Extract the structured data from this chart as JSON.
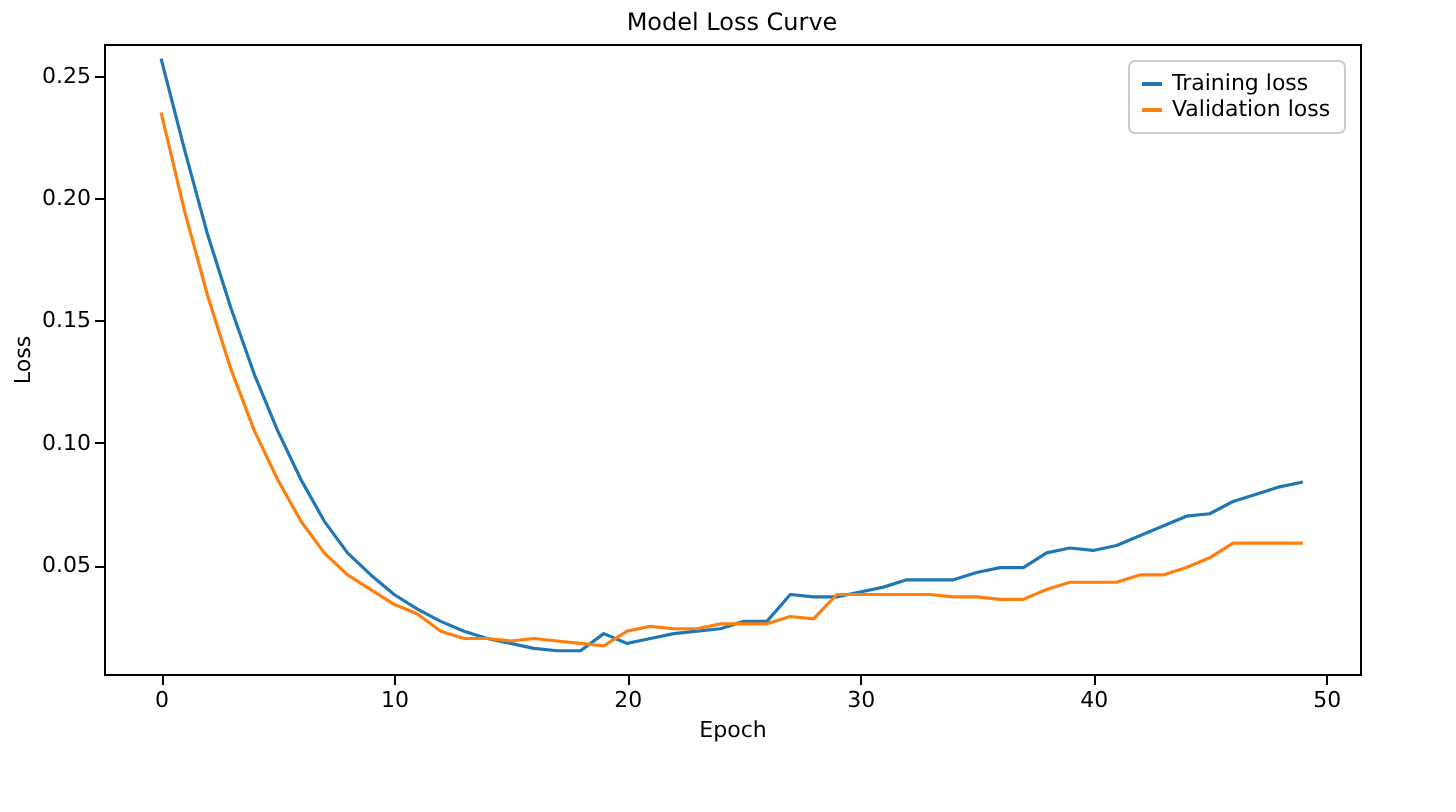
{
  "chart_data": {
    "type": "line",
    "title": "Model Loss Curve",
    "xlabel": "Epoch",
    "ylabel": "Loss",
    "x": [
      0,
      1,
      2,
      3,
      4,
      5,
      6,
      7,
      8,
      9,
      10,
      11,
      12,
      13,
      14,
      15,
      16,
      17,
      18,
      19,
      20,
      21,
      22,
      23,
      24,
      25,
      26,
      27,
      28,
      29,
      30,
      31,
      32,
      33,
      34,
      35,
      36,
      37,
      38,
      39,
      40,
      41,
      42,
      43,
      44,
      45,
      46,
      47,
      48,
      49
    ],
    "series": [
      {
        "name": "Training loss",
        "color": "#1f77b4",
        "values": [
          0.257,
          0.22,
          0.185,
          0.155,
          0.128,
          0.105,
          0.085,
          0.068,
          0.055,
          0.046,
          0.038,
          0.032,
          0.027,
          0.023,
          0.02,
          0.018,
          0.016,
          0.015,
          0.015,
          0.022,
          0.018,
          0.02,
          0.022,
          0.023,
          0.024,
          0.027,
          0.027,
          0.038,
          0.037,
          0.037,
          0.039,
          0.041,
          0.044,
          0.044,
          0.044,
          0.047,
          0.049,
          0.049,
          0.055,
          0.057,
          0.056,
          0.058,
          0.062,
          0.066,
          0.07,
          0.071,
          0.076,
          0.079,
          0.082,
          0.084
        ]
      },
      {
        "name": "Validation loss",
        "color": "#ff7f0e",
        "values": [
          0.235,
          0.195,
          0.16,
          0.13,
          0.105,
          0.085,
          0.068,
          0.055,
          0.046,
          0.04,
          0.034,
          0.03,
          0.023,
          0.02,
          0.02,
          0.019,
          0.02,
          0.019,
          0.018,
          0.017,
          0.023,
          0.025,
          0.024,
          0.024,
          0.026,
          0.026,
          0.026,
          0.029,
          0.028,
          0.038,
          0.038,
          0.038,
          0.038,
          0.038,
          0.037,
          0.037,
          0.036,
          0.036,
          0.04,
          0.043,
          0.043,
          0.043,
          0.046,
          0.046,
          0.049,
          0.053,
          0.059,
          0.059,
          0.059,
          0.059
        ]
      }
    ],
    "xlim": [
      -2.45,
      51.45
    ],
    "ylim": [
      0.0055,
      0.263
    ],
    "xticks": [
      0,
      10,
      20,
      30,
      40,
      50
    ],
    "yticks": [
      {
        "value": 0.05,
        "label": "0.05"
      },
      {
        "value": 0.1,
        "label": "0.10"
      },
      {
        "value": 0.15,
        "label": "0.15"
      },
      {
        "value": 0.2,
        "label": "0.20"
      },
      {
        "value": 0.25,
        "label": "0.25"
      }
    ],
    "legend": "top right",
    "grid": false,
    "line_style": "solid",
    "marker": "none"
  }
}
